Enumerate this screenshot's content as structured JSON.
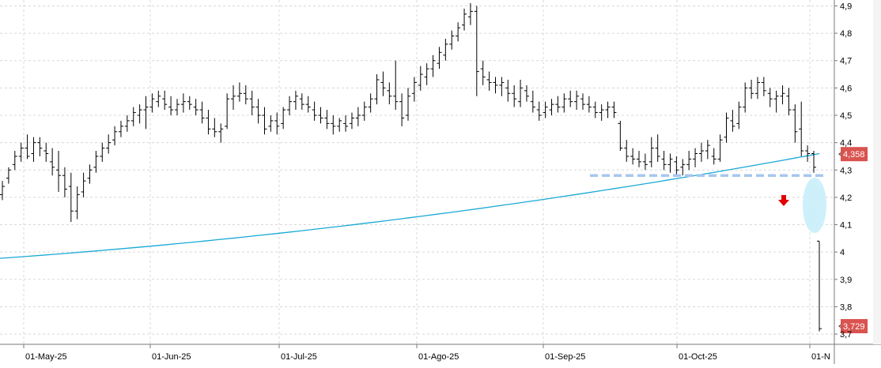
{
  "chart_data": {
    "type": "ohlc",
    "x_axis": {
      "tick_labels": [
        "01-May-25",
        "01-Jun-25",
        "01-Jul-25",
        "01-Ago-25",
        "01-Sep-25",
        "01-Oct-25",
        "01-N"
      ]
    },
    "y_axis": {
      "position": "right",
      "ylim": [
        3.68,
        4.91
      ],
      "tick_values": [
        3.7,
        3.8,
        3.9,
        4.0,
        4.1,
        4.2,
        4.3,
        4.4,
        4.5,
        4.6,
        4.7,
        4.8,
        4.9
      ],
      "tick_labels": [
        "3,7",
        "3,8",
        "3,9",
        "4",
        "4,1",
        "4,2",
        "4,3",
        "4,4",
        "4,5",
        "4,6",
        "4,7",
        "4,8",
        "4,9"
      ]
    },
    "grid": true,
    "colors": {
      "bars": "#000000",
      "moving_average": "#1aa9d6",
      "support_line": "#a7c6ee",
      "arrow": "#e00000",
      "highlight": "#c9eefb",
      "price_tag": "#d9534f"
    },
    "ohlc": [
      [
        4.21,
        4.26,
        4.19,
        4.24
      ],
      [
        4.27,
        4.31,
        4.25,
        4.3
      ],
      [
        4.32,
        4.37,
        4.3,
        4.35
      ],
      [
        4.35,
        4.4,
        4.33,
        4.38
      ],
      [
        4.38,
        4.43,
        4.34,
        4.35
      ],
      [
        4.36,
        4.42,
        4.33,
        4.4
      ],
      [
        4.4,
        4.42,
        4.35,
        4.38
      ],
      [
        4.37,
        4.4,
        4.33,
        4.36
      ],
      [
        4.33,
        4.38,
        4.28,
        4.31
      ],
      [
        4.3,
        4.37,
        4.22,
        4.28
      ],
      [
        4.28,
        4.31,
        4.2,
        4.23
      ],
      [
        4.24,
        4.29,
        4.11,
        4.15
      ],
      [
        4.15,
        4.24,
        4.12,
        4.21
      ],
      [
        4.22,
        4.29,
        4.2,
        4.26
      ],
      [
        4.27,
        4.32,
        4.25,
        4.3
      ],
      [
        4.31,
        4.37,
        4.29,
        4.35
      ],
      [
        4.35,
        4.4,
        4.33,
        4.38
      ],
      [
        4.38,
        4.43,
        4.36,
        4.4
      ],
      [
        4.41,
        4.46,
        4.39,
        4.44
      ],
      [
        4.44,
        4.48,
        4.42,
        4.46
      ],
      [
        4.46,
        4.5,
        4.44,
        4.48
      ],
      [
        4.48,
        4.53,
        4.46,
        4.51
      ],
      [
        4.5,
        4.54,
        4.47,
        4.52
      ],
      [
        4.52,
        4.57,
        4.45,
        4.53
      ],
      [
        4.53,
        4.58,
        4.51,
        4.56
      ],
      [
        4.55,
        4.59,
        4.53,
        4.57
      ],
      [
        4.56,
        4.59,
        4.52,
        4.54
      ],
      [
        4.53,
        4.57,
        4.5,
        4.52
      ],
      [
        4.52,
        4.56,
        4.5,
        4.54
      ],
      [
        4.54,
        4.58,
        4.51,
        4.55
      ],
      [
        4.55,
        4.57,
        4.52,
        4.54
      ],
      [
        4.53,
        4.56,
        4.5,
        4.52
      ],
      [
        4.52,
        4.55,
        4.47,
        4.49
      ],
      [
        4.49,
        4.52,
        4.43,
        4.45
      ],
      [
        4.45,
        4.49,
        4.42,
        4.44
      ],
      [
        4.44,
        4.47,
        4.4,
        4.45
      ],
      [
        4.46,
        4.58,
        4.45,
        4.56
      ],
      [
        4.56,
        4.61,
        4.52,
        4.57
      ],
      [
        4.57,
        4.62,
        4.55,
        4.58
      ],
      [
        4.58,
        4.61,
        4.54,
        4.56
      ],
      [
        4.56,
        4.59,
        4.5,
        4.53
      ],
      [
        4.53,
        4.56,
        4.47,
        4.5
      ],
      [
        4.5,
        4.53,
        4.43,
        4.45
      ],
      [
        4.46,
        4.5,
        4.44,
        4.48
      ],
      [
        4.48,
        4.51,
        4.43,
        4.46
      ],
      [
        4.47,
        4.53,
        4.45,
        4.52
      ],
      [
        4.52,
        4.57,
        4.5,
        4.55
      ],
      [
        4.55,
        4.59,
        4.52,
        4.57
      ],
      [
        4.56,
        4.58,
        4.52,
        4.54
      ],
      [
        4.54,
        4.57,
        4.51,
        4.53
      ],
      [
        4.52,
        4.55,
        4.48,
        4.5
      ],
      [
        4.5,
        4.53,
        4.47,
        4.49
      ],
      [
        4.49,
        4.52,
        4.45,
        4.47
      ],
      [
        4.47,
        4.5,
        4.43,
        4.46
      ],
      [
        4.46,
        4.49,
        4.44,
        4.48
      ],
      [
        4.47,
        4.5,
        4.44,
        4.46
      ],
      [
        4.47,
        4.51,
        4.45,
        4.49
      ],
      [
        4.49,
        4.53,
        4.46,
        4.5
      ],
      [
        4.5,
        4.55,
        4.48,
        4.53
      ],
      [
        4.53,
        4.58,
        4.51,
        4.56
      ],
      [
        4.56,
        4.65,
        4.54,
        4.63
      ],
      [
        4.62,
        4.66,
        4.57,
        4.6
      ],
      [
        4.59,
        4.62,
        4.54,
        4.57
      ],
      [
        4.57,
        4.7,
        4.52,
        4.55
      ],
      [
        4.55,
        4.58,
        4.46,
        4.49
      ],
      [
        4.5,
        4.6,
        4.48,
        4.57
      ],
      [
        4.58,
        4.64,
        4.55,
        4.62
      ],
      [
        4.61,
        4.68,
        4.59,
        4.65
      ],
      [
        4.64,
        4.69,
        4.61,
        4.67
      ],
      [
        4.67,
        4.72,
        4.64,
        4.7
      ],
      [
        4.69,
        4.75,
        4.67,
        4.73
      ],
      [
        4.72,
        4.78,
        4.7,
        4.76
      ],
      [
        4.76,
        4.81,
        4.74,
        4.79
      ],
      [
        4.79,
        4.84,
        4.77,
        4.82
      ],
      [
        4.83,
        4.89,
        4.81,
        4.87
      ],
      [
        4.86,
        4.91,
        4.83,
        4.88
      ],
      [
        4.88,
        4.9,
        4.57,
        4.66
      ],
      [
        4.67,
        4.7,
        4.61,
        4.64
      ],
      [
        4.63,
        4.66,
        4.59,
        4.62
      ],
      [
        4.62,
        4.64,
        4.58,
        4.61
      ],
      [
        4.61,
        4.64,
        4.57,
        4.62
      ],
      [
        4.6,
        4.63,
        4.55,
        4.58
      ],
      [
        4.58,
        4.61,
        4.53,
        4.56
      ],
      [
        4.55,
        4.63,
        4.53,
        4.6
      ],
      [
        4.59,
        4.61,
        4.55,
        4.57
      ],
      [
        4.55,
        4.59,
        4.51,
        4.53
      ],
      [
        4.52,
        4.55,
        4.48,
        4.5
      ],
      [
        4.51,
        4.55,
        4.49,
        4.53
      ],
      [
        4.52,
        4.56,
        4.5,
        4.54
      ],
      [
        4.54,
        4.57,
        4.51,
        4.53
      ],
      [
        4.53,
        4.58,
        4.51,
        4.56
      ],
      [
        4.56,
        4.59,
        4.53,
        4.55
      ],
      [
        4.55,
        4.59,
        4.52,
        4.57
      ],
      [
        4.56,
        4.58,
        4.52,
        4.54
      ],
      [
        4.54,
        4.57,
        4.51,
        4.53
      ],
      [
        4.53,
        4.55,
        4.49,
        4.51
      ],
      [
        4.51,
        4.54,
        4.48,
        4.52
      ],
      [
        4.52,
        4.55,
        4.49,
        4.53
      ],
      [
        4.53,
        4.55,
        4.49,
        4.51
      ],
      [
        4.47,
        4.48,
        4.37,
        4.38
      ],
      [
        4.38,
        4.41,
        4.33,
        4.35
      ],
      [
        4.35,
        4.38,
        4.32,
        4.34
      ],
      [
        4.34,
        4.37,
        4.31,
        4.33
      ],
      [
        4.33,
        4.36,
        4.3,
        4.32
      ],
      [
        4.33,
        4.42,
        4.31,
        4.38
      ],
      [
        4.38,
        4.43,
        4.33,
        4.35
      ],
      [
        4.34,
        4.37,
        4.3,
        4.32
      ],
      [
        4.32,
        4.36,
        4.29,
        4.34
      ],
      [
        4.33,
        4.35,
        4.28,
        4.3
      ],
      [
        4.31,
        4.34,
        4.28,
        4.32
      ],
      [
        4.32,
        4.37,
        4.3,
        4.34
      ],
      [
        4.34,
        4.38,
        4.31,
        4.36
      ],
      [
        4.36,
        4.4,
        4.33,
        4.37
      ],
      [
        4.37,
        4.41,
        4.34,
        4.39
      ],
      [
        4.35,
        4.38,
        4.32,
        4.34
      ],
      [
        4.34,
        4.43,
        4.33,
        4.41
      ],
      [
        4.42,
        4.51,
        4.4,
        4.49
      ],
      [
        4.48,
        4.52,
        4.44,
        4.46
      ],
      [
        4.47,
        4.55,
        4.45,
        4.53
      ],
      [
        4.53,
        4.62,
        4.51,
        4.6
      ],
      [
        4.6,
        4.63,
        4.56,
        4.58
      ],
      [
        4.58,
        4.64,
        4.56,
        4.62
      ],
      [
        4.62,
        4.64,
        4.57,
        4.59
      ],
      [
        4.58,
        4.6,
        4.53,
        4.56
      ],
      [
        4.56,
        4.59,
        4.51,
        4.57
      ],
      [
        4.57,
        4.61,
        4.54,
        4.58
      ],
      [
        4.57,
        4.6,
        4.5,
        4.52
      ],
      [
        4.52,
        4.54,
        4.4,
        4.44
      ],
      [
        4.45,
        4.55,
        4.35,
        4.37
      ],
      [
        4.37,
        4.39,
        4.33,
        4.36
      ],
      [
        4.36,
        4.37,
        4.29,
        4.31
      ]
    ],
    "last_bar": {
      "open": 4.04,
      "high": 4.04,
      "low": 3.71,
      "close": 3.72
    },
    "moving_average": {
      "start": 3.977,
      "end": 4.36
    },
    "support_level": 4.28,
    "price_tags": [
      {
        "value": 4.358,
        "label": "4,358"
      },
      {
        "value": 3.729,
        "label": "3,729"
      }
    ]
  }
}
